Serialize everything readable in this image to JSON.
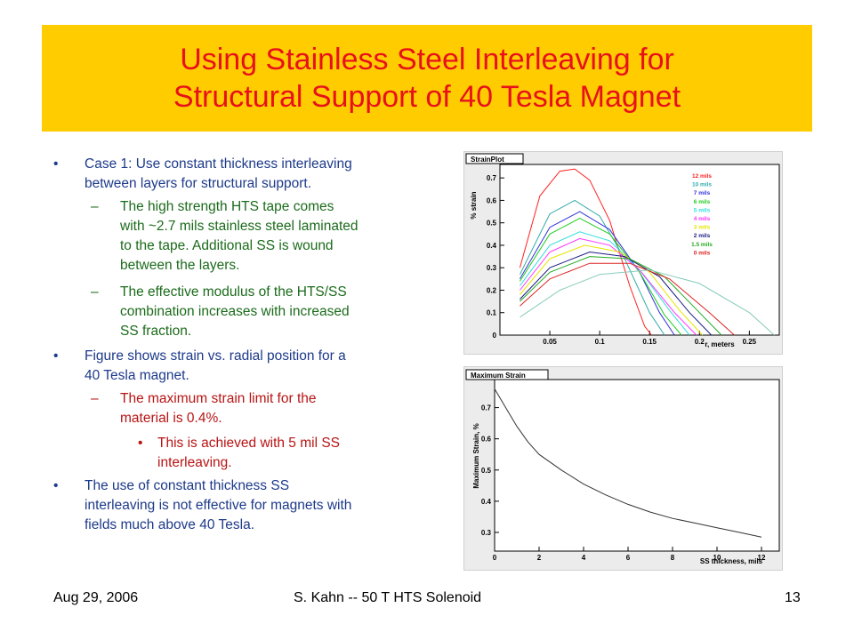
{
  "title": {
    "line1": "Using Stainless Steel Interleaving for",
    "line2": "Structural Support of 40 Tesla Magnet"
  },
  "bullets": {
    "b1": {
      "lines": [
        "Case 1: Use constant thickness interleaving",
        "between layers for structural support."
      ]
    },
    "b1a": {
      "lines": [
        "The high strength HTS tape comes",
        "with ~2.7 mils stainless steel laminated",
        "to the tape.  Additional SS is wound",
        "between the layers."
      ]
    },
    "b1b": {
      "lines": [
        "The effective modulus of the HTS/SS",
        "combination increases with increased",
        "SS fraction."
      ]
    },
    "b2": {
      "lines": [
        "Figure shows strain vs. radial position for a",
        "40 Tesla magnet."
      ]
    },
    "b2a": {
      "lines": [
        "The maximum strain limit for the",
        "material is 0.4%."
      ]
    },
    "b2a1": {
      "lines": [
        "This is achieved with 5 mil SS",
        "interleaving."
      ]
    },
    "b3": {
      "lines": [
        "The use of constant thickness SS",
        "interleaving is not effective for magnets with",
        "fields much above 40 Tesla."
      ]
    }
  },
  "markers": {
    "bullet": "•",
    "dash": "–"
  },
  "footer": {
    "date": "Aug 29, 2006",
    "center": "S. Kahn --  50 T HTS Solenoid",
    "page": "13"
  },
  "chart_data": [
    {
      "type": "line",
      "title": "StrainPlot",
      "xlabel": "r, meters",
      "ylabel": "% strain",
      "xlim": [
        0,
        0.28
      ],
      "ylim": [
        0,
        0.76
      ],
      "xticks": [
        "0.05",
        "0.1",
        "0.15",
        "0.2",
        "0.25"
      ],
      "xtick_values": [
        0.05,
        0.1,
        0.15,
        0.2,
        0.25
      ],
      "yticks": [
        "0",
        "0.1",
        "0.2",
        "0.3",
        "0.4",
        "0.5",
        "0.6",
        "0.7"
      ],
      "ytick_values": [
        0,
        0.1,
        0.2,
        0.3,
        0.4,
        0.5,
        0.6,
        0.7
      ],
      "grid": false,
      "legend_position": "top-right",
      "series": [
        {
          "name": "12 mils",
          "color": "#ff2020",
          "x": [
            0.02,
            0.04,
            0.06,
            0.075,
            0.09,
            0.11,
            0.13,
            0.145,
            0.152
          ],
          "y": [
            0.3,
            0.62,
            0.73,
            0.74,
            0.69,
            0.51,
            0.22,
            0.04,
            0.0
          ]
        },
        {
          "name": "10 mils",
          "color": "#33aaaa",
          "x": [
            0.02,
            0.05,
            0.075,
            0.1,
            0.125,
            0.15,
            0.165
          ],
          "y": [
            0.27,
            0.54,
            0.6,
            0.53,
            0.34,
            0.1,
            0.0
          ]
        },
        {
          "name": "7 mils",
          "color": "#3333dd",
          "x": [
            0.02,
            0.05,
            0.08,
            0.11,
            0.14,
            0.16,
            0.175
          ],
          "y": [
            0.25,
            0.48,
            0.55,
            0.47,
            0.28,
            0.1,
            0.0
          ]
        },
        {
          "name": "6 mils",
          "color": "#22cc22",
          "x": [
            0.02,
            0.05,
            0.08,
            0.11,
            0.14,
            0.165,
            0.182
          ],
          "y": [
            0.24,
            0.45,
            0.52,
            0.45,
            0.28,
            0.09,
            0.0
          ]
        },
        {
          "name": "5 mils",
          "color": "#33dddd",
          "x": [
            0.02,
            0.05,
            0.08,
            0.11,
            0.14,
            0.17,
            0.19
          ],
          "y": [
            0.22,
            0.4,
            0.46,
            0.42,
            0.29,
            0.11,
            0.0
          ]
        },
        {
          "name": "4 mils",
          "color": "#ff33ff",
          "x": [
            0.02,
            0.05,
            0.08,
            0.11,
            0.14,
            0.175,
            0.197
          ],
          "y": [
            0.2,
            0.37,
            0.43,
            0.4,
            0.29,
            0.1,
            0.0
          ]
        },
        {
          "name": "3 mils",
          "color": "#e6e600",
          "x": [
            0.02,
            0.05,
            0.085,
            0.12,
            0.15,
            0.18,
            0.203
          ],
          "y": [
            0.18,
            0.34,
            0.4,
            0.37,
            0.28,
            0.11,
            0.0
          ]
        },
        {
          "name": "2 mils",
          "color": "#1a1a80",
          "x": [
            0.02,
            0.05,
            0.09,
            0.125,
            0.16,
            0.19,
            0.212
          ],
          "y": [
            0.16,
            0.3,
            0.37,
            0.35,
            0.26,
            0.1,
            0.0
          ]
        },
        {
          "name": "1.5 mils",
          "color": "#22aa22",
          "x": [
            0.02,
            0.05,
            0.09,
            0.13,
            0.165,
            0.2,
            0.222
          ],
          "y": [
            0.15,
            0.28,
            0.35,
            0.34,
            0.26,
            0.1,
            0.0
          ]
        },
        {
          "name": "0 mils",
          "color": "#dd2222",
          "x": [
            0.02,
            0.05,
            0.09,
            0.13,
            0.17,
            0.21,
            0.235
          ],
          "y": [
            0.13,
            0.25,
            0.32,
            0.32,
            0.25,
            0.1,
            0.0
          ]
        },
        {
          "name": "",
          "color": "#88ccbb",
          "x": [
            0.02,
            0.06,
            0.1,
            0.15,
            0.2,
            0.25,
            0.275
          ],
          "y": [
            0.08,
            0.2,
            0.27,
            0.29,
            0.23,
            0.1,
            0.0
          ]
        }
      ]
    },
    {
      "type": "line",
      "title": "Maximum Strain",
      "xlabel": "SS thickness, mils",
      "ylabel": "Maximum Strain, %",
      "xlim": [
        0,
        12.8
      ],
      "ylim": [
        0.24,
        0.79
      ],
      "xticks": [
        "0",
        "2",
        "4",
        "6",
        "8",
        "10",
        "12"
      ],
      "xtick_values": [
        0,
        2,
        4,
        6,
        8,
        10,
        12
      ],
      "yticks": [
        "0.3",
        "0.4",
        "0.5",
        "0.6",
        "0.7"
      ],
      "ytick_values": [
        0.3,
        0.4,
        0.5,
        0.6,
        0.7
      ],
      "grid": false,
      "series": [
        {
          "name": "",
          "color": "#333333",
          "x": [
            0,
            0.5,
            1,
            1.5,
            2,
            3,
            4,
            5,
            6,
            7,
            8,
            9,
            10,
            11,
            12
          ],
          "y": [
            0.76,
            0.7,
            0.64,
            0.59,
            0.55,
            0.5,
            0.455,
            0.42,
            0.39,
            0.365,
            0.345,
            0.33,
            0.315,
            0.3,
            0.285
          ]
        }
      ]
    }
  ]
}
